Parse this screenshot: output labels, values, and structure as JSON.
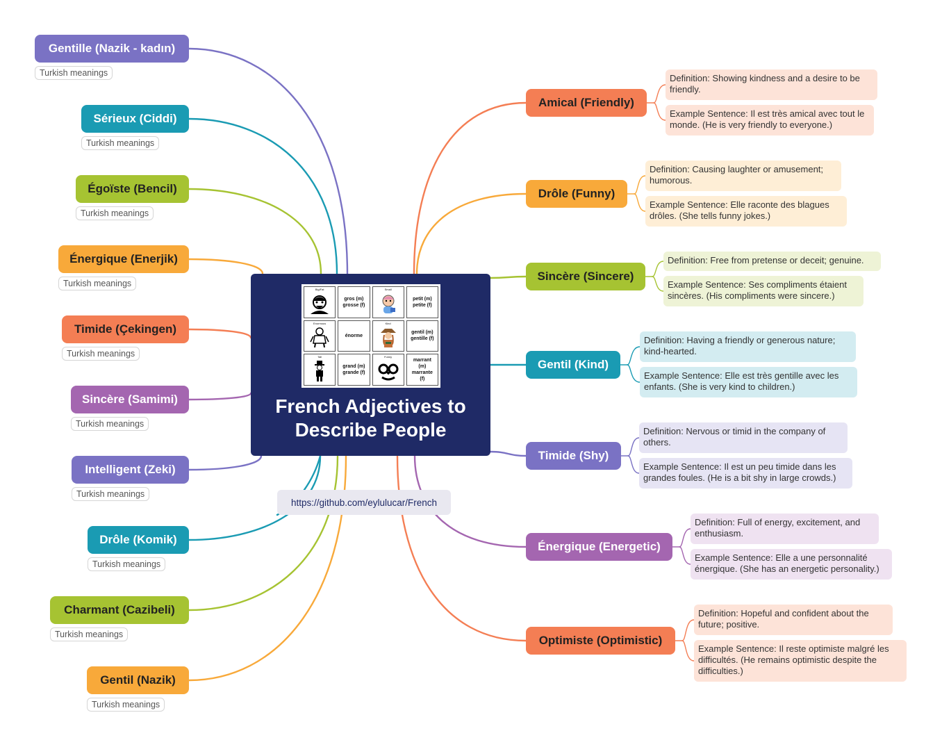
{
  "central": {
    "title": "French Adjectives to Describe People",
    "picture": [
      {
        "caption": "Big/Fat",
        "text": "",
        "icon": "fat-man-icon"
      },
      {
        "caption": "",
        "text": "gros (m)\ngrosse (f)",
        "icon": ""
      },
      {
        "caption": "Small",
        "text": "",
        "icon": "baby-icon"
      },
      {
        "caption": "",
        "text": "petit (m)\npetite (f)",
        "icon": ""
      },
      {
        "caption": "Enormous",
        "text": "",
        "icon": "giant-icon"
      },
      {
        "caption": "",
        "text": "énorme",
        "icon": ""
      },
      {
        "caption": "Kind",
        "text": "",
        "icon": "ranger-icon"
      },
      {
        "caption": "",
        "text": "gentil (m)\ngentille (f)",
        "icon": ""
      },
      {
        "caption": "Tall",
        "text": "",
        "icon": "tall-man-icon"
      },
      {
        "caption": "",
        "text": "grand (m)\ngrande (f)",
        "icon": ""
      },
      {
        "caption": "Funny",
        "text": "",
        "icon": "funny-glasses-icon"
      },
      {
        "caption": "",
        "text": "marrant\n(m)\nmarrante\n(f)",
        "icon": ""
      }
    ]
  },
  "link": "https://github.com/eylulucar/French",
  "left_nodes": [
    {
      "label": "Gentille (Nazik - kadın)",
      "tag": "Turkish meanings",
      "color": "#7a72c4",
      "text_dark": false
    },
    {
      "label": "Sérieux (Ciddi)",
      "tag": "Turkish meanings",
      "color": "#1a9bb3",
      "text_dark": false
    },
    {
      "label": "Égoïste (Bencil)",
      "tag": "Turkish meanings",
      "color": "#a6c332",
      "text_dark": true
    },
    {
      "label": "Énergique (Enerjik)",
      "tag": "Turkish meanings",
      "color": "#f8a93a",
      "text_dark": true
    },
    {
      "label": "Timide (Çekingen)",
      "tag": "Turkish meanings",
      "color": "#f47e54",
      "text_dark": true
    },
    {
      "label": "Sincère (Samimi)",
      "tag": "Turkish meanings",
      "color": "#a466b0",
      "text_dark": false
    },
    {
      "label": "Intelligent (Zeki)",
      "tag": "Turkish meanings",
      "color": "#7a72c4",
      "text_dark": false
    },
    {
      "label": "Drôle (Komik)",
      "tag": "Turkish meanings",
      "color": "#1a9bb3",
      "text_dark": false
    },
    {
      "label": "Charmant (Cazibeli)",
      "tag": "Turkish meanings",
      "color": "#a6c332",
      "text_dark": true
    },
    {
      "label": "Gentil (Nazik)",
      "tag": "Turkish meanings",
      "color": "#f8a93a",
      "text_dark": true
    }
  ],
  "right_nodes": [
    {
      "label": "Amical (Friendly)",
      "color": "#f47e54",
      "detail_bg": "#fde3d8",
      "text_dark": true,
      "definition": "Definition: Showing kindness and a desire to be friendly.",
      "example": "Example Sentence: Il est très amical avec tout le monde. (He is very friendly to everyone.)"
    },
    {
      "label": "Drôle (Funny)",
      "color": "#f8a93a",
      "detail_bg": "#feeed6",
      "text_dark": true,
      "definition": "Definition: Causing laughter or amusement; humorous.",
      "example": "Example Sentence: Elle raconte des blagues drôles. (She tells funny jokes.)"
    },
    {
      "label": "Sincère (Sincere)",
      "color": "#a6c332",
      "detail_bg": "#eef3d6",
      "text_dark": true,
      "definition": "Definition: Free from pretense or deceit; genuine.",
      "example": "Example Sentence: Ses compliments étaient sincères. (His compliments were sincere.)"
    },
    {
      "label": "Gentil (Kind)",
      "color": "#1a9bb3",
      "detail_bg": "#d3ecf1",
      "text_dark": false,
      "definition": "Definition: Having a friendly or generous nature; kind-hearted.",
      "example": "Example Sentence: Elle est très gentille avec les enfants. (She is very kind to children.)"
    },
    {
      "label": "Timide (Shy)",
      "color": "#7a72c4",
      "detail_bg": "#e6e4f4",
      "text_dark": false,
      "definition": "Definition: Nervous or timid in the company of others.",
      "example": "Example Sentence: Il est un peu timide dans les grandes foules. (He is a bit shy in large crowds.)"
    },
    {
      "label": "Énergique (Energetic)",
      "color": "#a466b0",
      "detail_bg": "#efe2f1",
      "text_dark": false,
      "definition": "Definition: Full of energy, excitement, and enthusiasm.",
      "example": "Example Sentence: Elle a une personnalité énergique. (She has an energetic personality.)"
    },
    {
      "label": "Optimiste (Optimistic)",
      "color": "#f47e54",
      "detail_bg": "#fde3d8",
      "text_dark": true,
      "definition": "Definition: Hopeful and confident about the future; positive.",
      "example": "Example Sentence: Il reste optimiste malgré les difficultés. (He remains optimistic despite the difficulties.)"
    }
  ]
}
